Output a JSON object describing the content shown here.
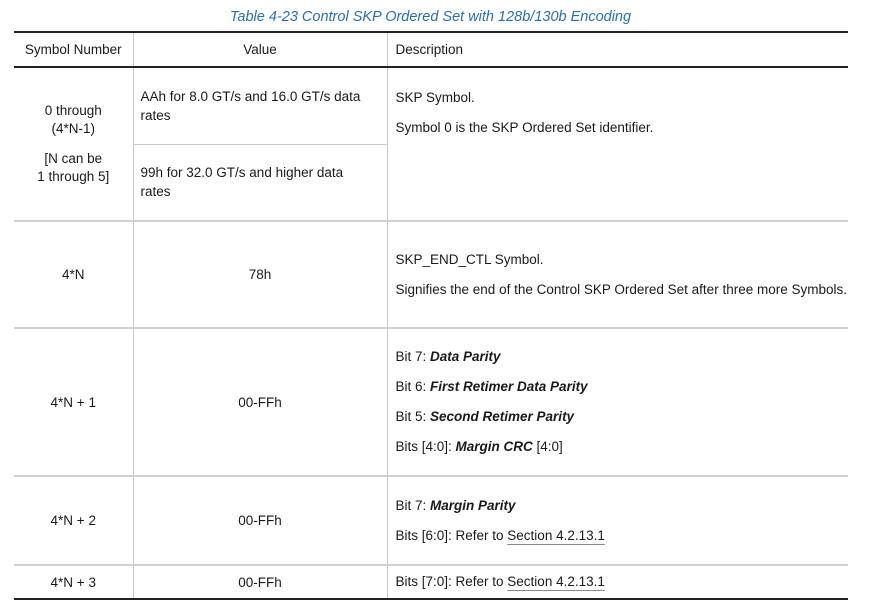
{
  "caption": "Table  4-23  Control SKP Ordered Set with 128b/130b Encoding",
  "headers": {
    "symbol": "Symbol Number",
    "value": "Value",
    "description": "Description"
  },
  "rows": [
    {
      "symbol_lines": [
        "0 through",
        "(4*N-1)"
      ],
      "symbol_note_lines": [
        "[N can be",
        "1 through 5]"
      ],
      "values": [
        "AAh for 8.0 GT/s and 16.0 GT/s data rates",
        "99h for 32.0 GT/s and higher data rates"
      ],
      "desc": [
        "SKP Symbol.",
        "Symbol 0 is the SKP Ordered Set identifier."
      ]
    },
    {
      "symbol": "4*N",
      "value": "78h",
      "desc": [
        "SKP_END_CTL Symbol.",
        "Signifies the end of the Control SKP Ordered Set after three more Symbols."
      ]
    },
    {
      "symbol": "4*N + 1",
      "value": "00-FFh",
      "bits": [
        {
          "prefix": "Bit 7: ",
          "name": "Data Parity",
          "suffix": ""
        },
        {
          "prefix": "Bit 6: ",
          "name": "First Retimer Data Parity",
          "suffix": ""
        },
        {
          "prefix": "Bit 5: ",
          "name": "Second Retimer Parity",
          "suffix": ""
        },
        {
          "prefix": "Bits [4:0]: ",
          "name": "Margin CRC",
          "suffix": " [4:0]"
        }
      ]
    },
    {
      "symbol": "4*N + 2",
      "value": "00-FFh",
      "bit7": {
        "prefix": "Bit 7: ",
        "name": "Margin Parity"
      },
      "ref": {
        "prefix": "Bits [6:0]: Refer to ",
        "link": "Section 4.2.13.1"
      }
    },
    {
      "symbol": "4*N + 3",
      "value": "00-FFh",
      "ref": {
        "prefix": "Bits [7:0]: Refer to ",
        "link": "Section 4.2.13.1"
      }
    }
  ]
}
